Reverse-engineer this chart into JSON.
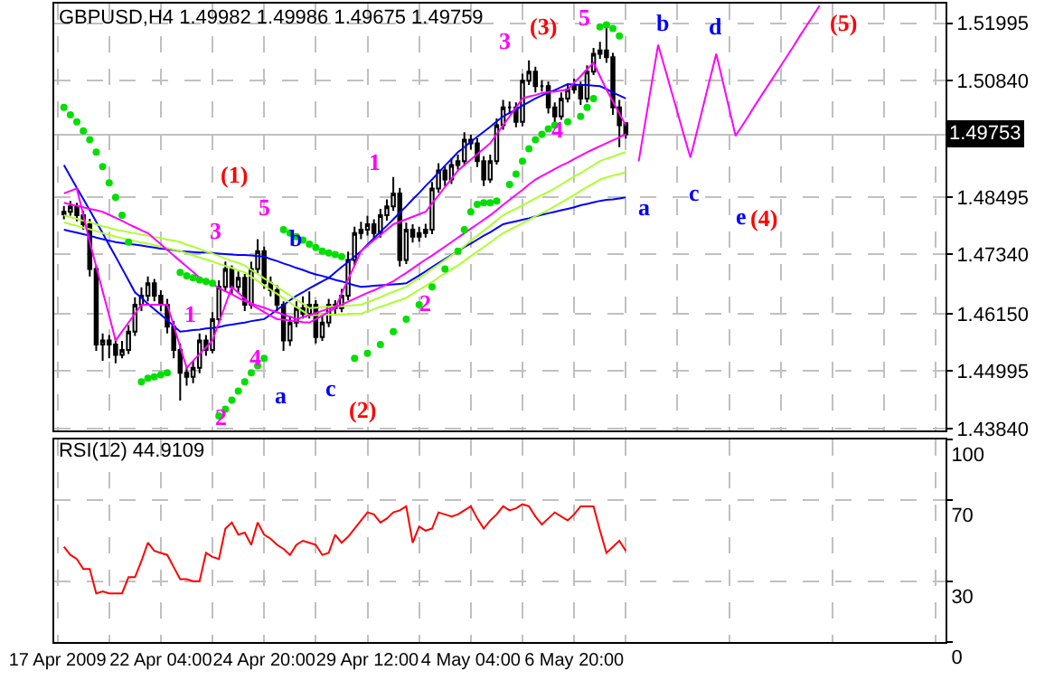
{
  "chart_data": [
    {
      "type": "candlestick",
      "title": "GBPUSD,H4 1.49982 1.49986 1.49675 1.49759",
      "categories": [
        null,
        null,
        null,
        null,
        null,
        null,
        null,
        null,
        null,
        null,
        null,
        null,
        null,
        null,
        null,
        null,
        null,
        null,
        null,
        null,
        null,
        null,
        null,
        null,
        null,
        null,
        null,
        null,
        null,
        null,
        null,
        null,
        null,
        null,
        null,
        null,
        null,
        null,
        null,
        null,
        null,
        null,
        null,
        null,
        null,
        null,
        null,
        null,
        null,
        null,
        null,
        null,
        null,
        null,
        null,
        null,
        null,
        null,
        null,
        null,
        null,
        null,
        null,
        null,
        null,
        null,
        null,
        null,
        null,
        null,
        null,
        null,
        null,
        null,
        null,
        null,
        null,
        null,
        null,
        null,
        null,
        null,
        null,
        null,
        null,
        null,
        null,
        null,
        null,
        null,
        null,
        null,
        null,
        null,
        null,
        null,
        null,
        null,
        null,
        null,
        null,
        null,
        null,
        null,
        null,
        null,
        null,
        null,
        null,
        null,
        null,
        null,
        null,
        null,
        null,
        null,
        null,
        null,
        null,
        null,
        null,
        null,
        null,
        null,
        null,
        null,
        null,
        null,
        null,
        null,
        null,
        null,
        null,
        null,
        null,
        null,
        null,
        null
      ],
      "ohlc": [
        null,
        [
          1.4815,
          1.4832,
          1.4805,
          1.482
        ],
        [
          1.482,
          1.4842,
          1.4812,
          1.4831
        ],
        [
          1.4831,
          1.4838,
          1.4801,
          1.4813
        ],
        [
          1.4813,
          1.4822,
          1.4784,
          1.4795
        ],
        [
          1.4795,
          1.4806,
          1.469,
          1.4705
        ],
        [
          1.4705,
          1.4712,
          1.454,
          1.4553
        ],
        [
          1.4553,
          1.4575,
          1.452,
          1.4561
        ],
        [
          1.4561,
          1.4572,
          1.4525,
          1.4553
        ],
        [
          1.4553,
          1.4566,
          1.4515,
          1.4532
        ],
        [
          1.4532,
          1.456,
          1.4525,
          1.4542
        ],
        [
          1.4542,
          1.4592,
          1.4534,
          1.4579
        ],
        [
          1.4579,
          1.4648,
          1.457,
          1.4633
        ],
        [
          1.4633,
          1.4668,
          1.462,
          1.4651
        ],
        [
          1.4651,
          1.469,
          1.464,
          1.4676
        ],
        [
          1.4676,
          1.4685,
          1.464,
          1.4651
        ],
        [
          1.4651,
          1.4662,
          1.462,
          1.4633
        ],
        [
          1.4633,
          1.4645,
          1.4575,
          1.4589
        ],
        [
          1.4589,
          1.46,
          1.4525,
          1.4542
        ],
        [
          1.4542,
          1.4555,
          1.444,
          1.4496
        ],
        [
          1.4496,
          1.451,
          1.447,
          1.4488
        ],
        [
          1.4488,
          1.452,
          1.4475,
          1.4506
        ],
        [
          1.4506,
          1.4575,
          1.4495,
          1.4561
        ],
        [
          1.4561,
          1.4572,
          1.453,
          1.4542
        ],
        [
          1.4542,
          1.4618,
          1.4535,
          1.4604
        ],
        [
          1.4604,
          1.4682,
          1.4595,
          1.4669
        ],
        [
          1.4669,
          1.472,
          1.466,
          1.4705
        ],
        [
          1.4705,
          1.4712,
          1.4655,
          1.4669
        ],
        [
          1.4669,
          1.47,
          1.4658,
          1.4687
        ],
        [
          1.4687,
          1.4695,
          1.462,
          1.4633
        ],
        [
          1.4633,
          1.472,
          1.4625,
          1.4705
        ],
        [
          1.4705,
          1.4765,
          1.4695,
          1.4741
        ],
        [
          1.4741,
          1.475,
          1.4665,
          1.4676
        ],
        [
          1.4676,
          1.469,
          1.465,
          1.4662
        ],
        [
          1.4662,
          1.4672,
          1.462,
          1.4633
        ],
        [
          1.4633,
          1.464,
          1.454,
          1.4561
        ],
        [
          1.4561,
          1.461,
          1.455,
          1.4597
        ],
        [
          1.4597,
          1.464,
          1.4588,
          1.4626
        ],
        [
          1.4626,
          1.465,
          1.4605,
          1.4615
        ],
        [
          1.4615,
          1.466,
          1.4605,
          1.4633
        ],
        [
          1.4633,
          1.4642,
          1.4555,
          1.4568
        ],
        [
          1.4568,
          1.461,
          1.456,
          1.4597
        ],
        [
          1.4597,
          1.4645,
          1.4588,
          1.4633
        ],
        [
          1.4633,
          1.4642,
          1.4615,
          1.4626
        ],
        [
          1.4626,
          1.4665,
          1.4618,
          1.4651
        ],
        [
          1.4651,
          1.474,
          1.4642,
          1.4723
        ],
        [
          1.4723,
          1.479,
          1.4712,
          1.4777
        ],
        [
          1.4777,
          1.48,
          1.4765,
          1.4784
        ],
        [
          1.4784,
          1.4812,
          1.4772,
          1.4795
        ],
        [
          1.4795,
          1.4805,
          1.4765,
          1.4777
        ],
        [
          1.4777,
          1.4826,
          1.4768,
          1.4813
        ],
        [
          1.4813,
          1.4845,
          1.4802,
          1.4831
        ],
        [
          1.4831,
          1.489,
          1.4822,
          1.4857
        ],
        [
          1.4857,
          1.4868,
          1.471,
          1.4723
        ],
        [
          1.4723,
          1.4798,
          1.4715,
          1.4784
        ],
        [
          1.4784,
          1.4795,
          1.4758,
          1.477
        ],
        [
          1.477,
          1.479,
          1.476,
          1.4777
        ],
        [
          1.4777,
          1.4796,
          1.4768,
          1.4784
        ],
        [
          1.4784,
          1.488,
          1.4775,
          1.4867
        ],
        [
          1.4867,
          1.4918,
          1.4858,
          1.4903
        ],
        [
          1.4903,
          1.4912,
          1.4872,
          1.4885
        ],
        [
          1.4885,
          1.4928,
          1.4876,
          1.4914
        ],
        [
          1.4914,
          1.4935,
          1.4905,
          1.4922
        ],
        [
          1.4922,
          1.498,
          1.4912,
          1.4965
        ],
        [
          1.4965,
          1.4975,
          1.4945,
          1.4958
        ],
        [
          1.4958,
          1.4968,
          1.491,
          1.4922
        ],
        [
          1.4922,
          1.4932,
          1.4872,
          1.4885
        ],
        [
          1.4885,
          1.4935,
          1.4878,
          1.4922
        ],
        [
          1.4922,
          1.5008,
          1.4915,
          1.4994
        ],
        [
          1.4994,
          1.5045,
          1.4985,
          1.503
        ],
        [
          1.503,
          1.5042,
          1.5018,
          1.503
        ],
        [
          1.503,
          1.504,
          1.499,
          1.5001
        ],
        [
          1.5001,
          1.5098,
          1.4992,
          1.5084
        ],
        [
          1.5084,
          1.5125,
          1.5075,
          1.5102
        ],
        [
          1.5102,
          1.5112,
          1.506,
          1.5073
        ],
        [
          1.5073,
          1.5085,
          1.5062,
          1.5073
        ],
        [
          1.5073,
          1.5082,
          1.5018,
          1.503
        ],
        [
          1.503,
          1.504,
          1.5,
          1.5012
        ],
        [
          1.5012,
          1.506,
          1.5005,
          1.5048
        ],
        [
          1.5048,
          1.5078,
          1.504,
          1.5066
        ],
        [
          1.5066,
          1.5088,
          1.5058,
          1.5073
        ],
        [
          1.5073,
          1.5082,
          1.5035,
          1.5048
        ],
        [
          1.5048,
          1.5115,
          1.504,
          1.5102
        ],
        [
          1.5102,
          1.515,
          1.5095,
          1.5138
        ],
        [
          1.5138,
          1.5162,
          1.5128,
          1.5145
        ],
        [
          1.5145,
          1.519,
          1.512,
          1.5131
        ],
        [
          1.5131,
          1.514,
          1.5015,
          1.503
        ],
        [
          1.503,
          1.5045,
          1.495,
          1.4994
        ],
        [
          1.49982,
          1.49986,
          1.49675,
          1.49759
        ],
        null,
        null,
        null,
        null,
        null,
        null,
        null,
        null,
        null,
        null,
        null,
        null,
        null,
        null,
        null,
        null,
        null,
        null,
        null,
        null,
        null,
        null,
        null,
        null,
        null,
        null,
        null,
        null,
        null,
        null,
        null,
        null,
        null,
        null,
        null,
        null,
        null,
        null,
        null,
        null,
        null,
        null,
        null,
        null,
        null,
        null,
        null,
        null,
        null
      ],
      "series": [
        {
          "type": "line",
          "color": "#0000ff",
          "values": [
            null,
            1.4914,
            1.4891,
            1.4868,
            1.4846,
            1.4823,
            1.48,
            1.4777,
            1.4753,
            1.473,
            1.4706,
            1.4682,
            1.4658,
            1.4647,
            1.4635,
            1.4624,
            1.4613,
            1.4602,
            1.459,
            1.4579,
            1.458,
            1.4582,
            1.4583,
            1.4585,
            1.4586,
            1.4588,
            1.4591,
            1.4593,
            1.4595,
            1.4597,
            1.46,
            1.4602,
            1.4604,
            1.4613,
            1.4623,
            1.4632,
            1.4642,
            1.4651,
            1.4658,
            1.4666,
            1.4673,
            1.468,
            1.4687,
            1.4698,
            1.4709,
            1.4719,
            1.473,
            1.4741,
            1.4754,
            1.4767,
            1.478,
            1.4792,
            1.4805,
            1.4818,
            1.4831,
            1.4845,
            1.4858,
            1.4872,
            1.4885,
            1.4899,
            1.4913,
            1.4926,
            1.494,
            1.495,
            1.4961,
            1.4971,
            1.4981,
            1.4991,
            1.5002,
            1.5012,
            1.5019,
            1.5026,
            1.5034,
            1.5041,
            1.5048,
            1.5054,
            1.506,
            1.5065,
            1.5071,
            1.5077,
            1.5076,
            1.5075,
            1.5075,
            1.5074,
            1.5073,
            1.5067,
            1.506,
            1.5054,
            1.5048,
            null,
            null,
            null,
            null,
            null,
            null,
            null,
            null,
            null,
            null,
            null,
            null,
            null,
            null,
            null,
            null,
            null,
            null,
            null,
            null,
            null,
            null,
            null,
            null,
            null,
            null,
            null,
            null,
            null,
            null,
            null,
            null,
            null,
            null,
            null,
            null,
            null,
            null,
            null,
            null,
            null,
            null,
            null,
            null,
            null,
            null,
            null,
            null,
            null
          ]
        },
        {
          "type": "line",
          "color": "#0000ff",
          "values": [
            null,
            1.4784,
            1.4781,
            1.4778,
            1.4775,
            1.4772,
            1.4768,
            1.4765,
            1.4762,
            1.4759,
            1.4757,
            1.4755,
            1.4754,
            1.4752,
            1.475,
            1.4748,
            1.4746,
            1.4745,
            1.4743,
            1.4741,
            1.474,
            1.4739,
            1.4738,
            1.4738,
            1.4737,
            1.4736,
            1.4735,
            1.4734,
            1.4733,
            1.4733,
            1.4732,
            1.4731,
            1.473,
            1.4725,
            1.4721,
            1.4716,
            1.4712,
            1.4707,
            1.4703,
            1.4698,
            1.4694,
            1.4691,
            1.4687,
            1.4683,
            1.468,
            1.4676,
            1.4672,
            1.4669,
            1.467,
            1.4671,
            1.4672,
            1.4673,
            1.4674,
            1.4675,
            1.4676,
            1.4684,
            1.4692,
            1.47,
            1.4709,
            1.4717,
            1.4725,
            1.4733,
            1.4741,
            1.4749,
            1.4756,
            1.4764,
            1.4772,
            1.4779,
            1.4787,
            1.4795,
            1.4798,
            1.4801,
            1.4804,
            1.4807,
            1.4811,
            1.4814,
            1.4817,
            1.482,
            1.4823,
            1.4826,
            1.4829,
            1.4833,
            1.4836,
            1.4839,
            1.4842,
            1.4844,
            1.4845,
            1.4847,
            1.4849,
            null,
            null,
            null,
            null,
            null,
            null,
            null,
            null,
            null,
            null,
            null,
            null,
            null,
            null,
            null,
            null,
            null,
            null,
            null,
            null,
            null,
            null,
            null,
            null,
            null,
            null,
            null,
            null,
            null,
            null,
            null,
            null,
            null,
            null,
            null,
            null,
            null,
            null,
            null,
            null,
            null,
            null,
            null,
            null,
            null,
            null,
            null,
            null,
            null
          ]
        },
        {
          "type": "line",
          "color": "#adff2f",
          "values": [
            null,
            1.4813,
            1.4809,
            1.4806,
            1.4802,
            1.4799,
            1.4795,
            1.4791,
            1.4788,
            1.4784,
            1.4782,
            1.4779,
            1.4777,
            1.4774,
            1.4772,
            1.4769,
            1.4767,
            1.4764,
            1.4762,
            1.4759,
            1.4754,
            1.475,
            1.4745,
            1.474,
            1.4736,
            1.4731,
            1.4726,
            1.4721,
            1.4717,
            1.4712,
            1.4703,
            1.4695,
            1.4686,
            1.4678,
            1.4669,
            1.466,
            1.4652,
            1.4643,
            1.4635,
            1.4626,
            1.4627,
            1.4628,
            1.4629,
            1.463,
            1.463,
            1.4631,
            1.4632,
            1.4633,
            1.4638,
            1.4643,
            1.4648,
            1.4654,
            1.4659,
            1.4664,
            1.4669,
            1.4678,
            1.4687,
            1.4696,
            1.4705,
            1.4714,
            1.4723,
            1.4732,
            1.4741,
            1.4751,
            1.4762,
            1.4772,
            1.4782,
            1.4792,
            1.4803,
            1.4813,
            1.482,
            1.4826,
            1.4833,
            1.484,
            1.4847,
            1.4854,
            1.486,
            1.4867,
            1.4875,
            1.4883,
            1.4891,
            1.4898,
            1.4906,
            1.4914,
            1.4922,
            1.4927,
            1.4931,
            1.4936,
            1.494,
            null,
            null,
            null,
            null,
            null,
            null,
            null,
            null,
            null,
            null,
            null,
            null,
            null,
            null,
            null,
            null,
            null,
            null,
            null,
            null,
            null,
            null,
            null,
            null,
            null,
            null,
            null,
            null,
            null,
            null,
            null,
            null,
            null,
            null,
            null,
            null,
            null,
            null,
            null,
            null,
            null,
            null,
            null,
            null,
            null,
            null,
            null,
            null,
            null
          ]
        },
        {
          "type": "line",
          "color": "#adff2f",
          "values": [
            null,
            1.4799,
            1.4795,
            1.4792,
            1.4788,
            1.4785,
            1.4781,
            1.4777,
            1.4774,
            1.477,
            1.4767,
            1.4764,
            1.4761,
            1.4758,
            1.4756,
            1.4753,
            1.475,
            1.4747,
            1.4744,
            1.4741,
            1.4737,
            1.4732,
            1.4728,
            1.4724,
            1.472,
            1.4715,
            1.4711,
            1.4707,
            1.4702,
            1.4698,
            1.4689,
            1.4681,
            1.4672,
            1.4663,
            1.4655,
            1.4646,
            1.4637,
            1.4628,
            1.462,
            1.4611,
            1.4612,
            1.4612,
            1.4613,
            1.4613,
            1.4614,
            1.4614,
            1.4615,
            1.4615,
            1.462,
            1.4624,
            1.4629,
            1.4633,
            1.4638,
            1.4642,
            1.4647,
            1.4655,
            1.4663,
            1.4671,
            1.4679,
            1.4688,
            1.4696,
            1.4704,
            1.4712,
            1.4721,
            1.4731,
            1.474,
            1.4749,
            1.4758,
            1.4768,
            1.4777,
            1.4784,
            1.479,
            1.4797,
            1.4804,
            1.4811,
            1.4817,
            1.4824,
            1.4831,
            1.4839,
            1.4846,
            1.4854,
            1.4862,
            1.487,
            1.4877,
            1.4885,
            1.4889,
            1.4893,
            1.4896,
            1.49,
            null,
            null,
            null,
            null,
            null,
            null,
            null,
            null,
            null,
            null,
            null,
            null,
            null,
            null,
            null,
            null,
            null,
            null,
            null,
            null,
            null,
            null,
            null,
            null,
            null,
            null,
            null,
            null,
            null,
            null,
            null,
            null,
            null,
            null,
            null,
            null,
            null,
            null,
            null,
            null,
            null,
            null,
            null,
            null,
            null,
            null,
            null,
            null,
            null
          ]
        },
        {
          "type": "line",
          "color": "#ff00ff",
          "values": [
            null,
            1.4838,
            1.4835,
            1.4832,
            1.4829,
            1.4826,
            1.4823,
            1.482,
            1.4814,
            1.4808,
            1.4802,
            1.4795,
            1.4789,
            1.4783,
            1.4777,
            1.4766,
            1.4755,
            1.4743,
            1.4732,
            1.4721,
            1.471,
            1.4699,
            1.4687,
            1.468,
            1.4674,
            1.4667,
            1.466,
            1.4654,
            1.4647,
            1.464,
            1.4636,
            1.4631,
            1.4627,
            1.4622,
            1.4618,
            1.4613,
            1.4609,
            1.4604,
            1.4608,
            1.4612,
            1.4616,
            1.4621,
            1.4625,
            1.4629,
            1.4633,
            1.4639,
            1.4645,
            1.4651,
            1.4657,
            1.4662,
            1.4668,
            1.4674,
            1.468,
            1.4689,
            1.4697,
            1.4706,
            1.4715,
            1.4724,
            1.4732,
            1.4741,
            1.475,
            1.4759,
            1.4768,
            1.4777,
            1.4786,
            1.4795,
            1.4804,
            1.4813,
            1.4823,
            1.4834,
            1.4844,
            1.4854,
            1.4864,
            1.4875,
            1.4885,
            1.4892,
            1.4899,
            1.4906,
            1.4913,
            1.4919,
            1.4926,
            1.4933,
            1.494,
            1.4946,
            1.4952,
            1.4958,
            1.4964,
            1.497,
            1.4976,
            null,
            null,
            null,
            null,
            null,
            null,
            null,
            null,
            null,
            null,
            null,
            null,
            null,
            null,
            null,
            null,
            null,
            null,
            null,
            null,
            null,
            null,
            null,
            null,
            null,
            null,
            null,
            null,
            null,
            null,
            null,
            null,
            null,
            null,
            null,
            null,
            null,
            null,
            null,
            null,
            null,
            null,
            null,
            null,
            null,
            null,
            null,
            null,
            null
          ]
        },
        {
          "type": "line",
          "color": "#ff00ff",
          "values": [
            null,
            1.4857,
            1.4862,
            1.4867,
            1.4813,
            1.4759,
            1.471,
            1.466,
            1.4611,
            1.4561,
            1.4579,
            1.4597,
            1.4615,
            1.4633,
            1.4633,
            1.4633,
            1.4633,
            1.4633,
            1.4591,
            1.4548,
            1.4506,
            1.452,
            1.4534,
            1.4547,
            1.4561,
            1.4597,
            1.4633,
            1.4669,
            1.4657,
            1.4645,
            1.4633,
            1.4626,
            1.4618,
            1.4611,
            1.4604,
            1.4603,
            1.4601,
            1.46,
            1.4598,
            1.4597,
            1.4604,
            1.4611,
            1.4619,
            1.4626,
            1.4655,
            1.4684,
            1.4712,
            1.4741,
            1.4752,
            1.4763,
            1.4773,
            1.4784,
            1.4795,
            1.48,
            1.4805,
            1.481,
            1.4815,
            1.482,
            1.4837,
            1.4853,
            1.487,
            1.4886,
            1.4903,
            1.4914,
            1.4925,
            1.4936,
            1.4947,
            1.4958,
            1.4976,
            1.4994,
            1.5012,
            1.503,
            1.5048,
            1.5052,
            1.5055,
            1.5059,
            1.5061,
            1.5062,
            1.5064,
            1.5066,
            1.508,
            1.5093,
            1.5107,
            1.512,
            1.5093,
            1.5066,
            1.5042,
            1.5018,
            1.4994,
            null,
            null,
            null,
            null,
            null,
            null,
            null,
            null,
            null,
            null,
            null,
            null,
            null,
            null,
            null,
            null,
            null,
            null,
            null,
            null,
            null,
            null,
            null,
            null,
            null,
            null,
            null,
            null,
            null,
            null,
            null,
            null,
            null,
            null,
            null,
            null,
            null,
            null,
            null,
            null,
            null,
            null,
            null,
            null,
            null,
            null,
            null,
            null,
            null
          ]
        },
        {
          "type": "scatter",
          "marker": "circle",
          "color": "#00e000",
          "values": [
            null,
            1.503,
            1.5015,
            1.5001,
            1.4983,
            1.4965,
            1.494,
            1.4911,
            1.4878,
            1.4849,
            1.4813,
            1.4759,
            null,
            1.4478,
            1.4485,
            1.4488,
            1.4492,
            1.4496,
            null,
            1.4698,
            1.4691,
            1.4687,
            1.4683,
            1.468,
            1.4676,
            1.4409,
            1.4423,
            1.4441,
            1.4459,
            1.4478,
            1.4496,
            1.451,
            1.4525,
            null,
            null,
            1.4784,
            1.4777,
            1.477,
            1.4763,
            1.4755,
            1.4748,
            1.4741,
            1.4737,
            1.4734,
            1.473,
            null,
            1.4525,
            null,
            1.4535,
            null,
            1.4553,
            null,
            1.4579,
            null,
            1.4604,
            null,
            1.4633,
            null,
            1.4669,
            null,
            1.4705,
            null,
            1.4741,
            1.4784,
            1.482,
            1.4835,
            1.4838,
            1.4838,
            1.4842,
            null,
            1.4875,
            1.4896,
            1.4922,
            1.4947,
            1.4965,
            1.4976,
            1.4987,
            1.4994,
            null,
            1.5001,
            null,
            1.5012,
            1.503,
            1.5048,
            1.5192,
            1.5196,
            1.5189,
            1.5174,
            null,
            null,
            null,
            null,
            null,
            null,
            null,
            null,
            null,
            null,
            null,
            null,
            null,
            null,
            null,
            null,
            null,
            null,
            null,
            null,
            null,
            null,
            null,
            null,
            null,
            null,
            null,
            null,
            null,
            null,
            null,
            null,
            null,
            null,
            null,
            null,
            null,
            null,
            null,
            null,
            null,
            null,
            null,
            null,
            null,
            null,
            null,
            null,
            null,
            null
          ]
        },
        {
          "type": "line",
          "color": "#ff00ff",
          "values": [
            null,
            null,
            null,
            null,
            null,
            null,
            null,
            null,
            null,
            null,
            null,
            null,
            null,
            null,
            null,
            null,
            null,
            null,
            null,
            null,
            null,
            null,
            null,
            null,
            null,
            null,
            null,
            null,
            null,
            null,
            null,
            null,
            null,
            null,
            null,
            null,
            null,
            null,
            null,
            null,
            null,
            null,
            null,
            null,
            null,
            null,
            null,
            null,
            null,
            null,
            null,
            null,
            null,
            null,
            null,
            null,
            null,
            null,
            null,
            null,
            null,
            null,
            null,
            null,
            null,
            null,
            null,
            null,
            null,
            null,
            null,
            null,
            null,
            null,
            null,
            null,
            null,
            null,
            null,
            null,
            null,
            null,
            null,
            null,
            null,
            null,
            null,
            null,
            null,
            null,
            1.4922,
            1.5,
            1.5078,
            1.5156,
            1.5111,
            1.5065,
            1.502,
            1.4974,
            1.4929,
            1.4981,
            1.5034,
            1.5086,
            1.5138,
            1.5083,
            1.5028,
            1.4973,
            1.4993,
            1.5013,
            1.5034,
            1.5054,
            1.5074,
            1.5094,
            1.5114,
            1.5134,
            1.5154,
            1.5175,
            1.5195,
            1.5215,
            1.5235,
            null,
            null,
            null,
            null,
            null,
            null,
            null,
            null,
            null,
            null,
            null,
            null,
            null,
            null,
            null,
            null,
            null,
            null,
            null
          ]
        }
      ],
      "annotations": [
        "1",
        "2",
        "3",
        "4",
        "5",
        "1",
        "2",
        "3",
        "4",
        "5",
        "(1)",
        "(2)",
        "(3)",
        "(4)",
        "(5)",
        "a",
        "b",
        "c",
        "a",
        "b",
        "c",
        "d",
        "e"
      ],
      "ref_lines": [
        {
          "axis": "y",
          "value": 1.49753,
          "label": "1.49753",
          "color": "#c0c0c0"
        }
      ],
      "ylim": [
        1.438,
        1.5239
      ],
      "yticks": [
        {
          "value": 1.4384,
          "label": "1.43840"
        },
        {
          "value": 1.44995,
          "label": "1.44995"
        },
        {
          "value": 1.4615,
          "label": "1.46150"
        },
        {
          "value": 1.4734,
          "label": "1.47340"
        },
        {
          "value": 1.48495,
          "label": "1.48495"
        },
        {
          "value": 1.5084,
          "label": "1.50840"
        },
        {
          "value": 1.51995,
          "label": "1.51995"
        }
      ],
      "tick_labels": "y",
      "grid": true
    },
    {
      "type": "line",
      "title": "RSI(12) 44.9109",
      "color": "#ff0000",
      "categories": [
        "17 Apr 2009",
        null,
        null,
        null,
        null,
        null,
        null,
        null,
        null,
        null,
        null,
        null,
        null,
        null,
        null,
        null,
        "22 Apr 04:00",
        null,
        null,
        null,
        null,
        null,
        null,
        null,
        null,
        null,
        null,
        null,
        null,
        null,
        null,
        null,
        "24 Apr 20:00",
        null,
        null,
        null,
        null,
        null,
        null,
        null,
        null,
        null,
        null,
        null,
        null,
        null,
        null,
        null,
        "29 Apr 12:00",
        null,
        null,
        null,
        null,
        null,
        null,
        null,
        null,
        null,
        null,
        null,
        null,
        null,
        null,
        null,
        "4 May 04:00",
        null,
        null,
        null,
        null,
        null,
        null,
        null,
        null,
        null,
        null,
        null,
        null,
        null,
        null,
        null,
        "6 May 20:00",
        null,
        null,
        null,
        null,
        null,
        null,
        null,
        null,
        null,
        null,
        null,
        null,
        null,
        null,
        null,
        null,
        null,
        null,
        null,
        null,
        null,
        null,
        null,
        null,
        null,
        null,
        null,
        null,
        null,
        null,
        null,
        null,
        null,
        null,
        null,
        null,
        null,
        null,
        null,
        null,
        null,
        null,
        null,
        null,
        null,
        null,
        null,
        null,
        null,
        null,
        null,
        null,
        null,
        null,
        null,
        null,
        null
      ],
      "values": [
        null,
        47,
        43,
        41,
        36,
        36,
        24,
        25,
        24,
        24,
        24,
        32,
        32,
        40,
        49,
        45,
        44,
        43,
        37,
        31,
        31,
        30,
        30,
        44,
        42,
        41,
        56,
        59,
        53,
        54,
        48,
        59,
        53,
        51,
        48,
        46,
        43,
        48,
        50,
        49,
        48,
        43,
        44,
        53,
        49,
        52,
        56,
        60,
        64,
        63,
        59,
        61,
        64,
        65,
        67,
        49,
        57,
        55,
        56,
        64,
        63,
        62,
        63,
        65,
        67,
        61,
        56,
        60,
        63,
        67,
        65,
        66,
        68,
        67,
        62,
        58,
        61,
        64,
        62,
        60,
        63,
        67,
        67,
        67,
        55,
        44,
        47,
        50,
        45,
        null,
        null,
        null,
        null,
        null,
        null,
        null,
        null,
        null,
        null,
        null,
        null,
        null,
        null,
        null,
        null,
        null,
        null,
        null,
        null,
        null,
        null,
        null,
        null,
        null,
        null,
        null,
        null,
        null,
        null,
        null,
        null,
        null,
        null,
        null,
        null,
        null,
        null,
        null,
        null,
        null,
        null,
        null,
        null,
        null,
        null,
        null,
        null,
        null
      ],
      "ylim": [
        0,
        100
      ],
      "yticks": [
        0,
        30,
        70,
        100
      ],
      "grid": true
    }
  ]
}
